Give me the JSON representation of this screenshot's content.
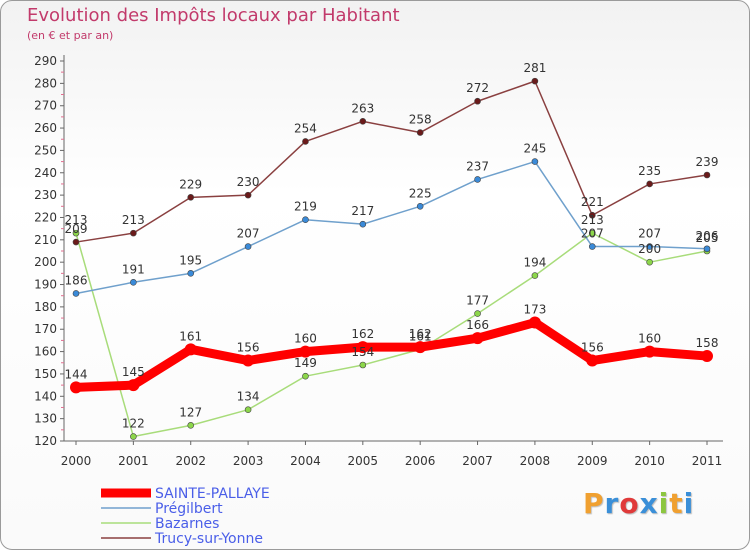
{
  "title": "Evolution des Impôts locaux par Habitant",
  "subtitle": "(en € et par an)",
  "logo": {
    "letters": [
      "P",
      "r",
      "o",
      "x",
      "i",
      "t",
      "i"
    ],
    "colors": [
      "#f0a030",
      "#3a8fd8",
      "#e03a3a",
      "#3a8fd8",
      "#8cc63f",
      "#f0a030",
      "#3a8fd8"
    ]
  },
  "chart_data": {
    "type": "line",
    "title": "Evolution des Impôts locaux par Habitant",
    "subtitle": "(en € et par an)",
    "xlabel": "",
    "ylabel": "",
    "ylim": [
      120,
      290
    ],
    "ystep": 10,
    "grid": false,
    "legend_position": "bottom-left",
    "x": [
      "2000",
      "2001",
      "2002",
      "2003",
      "2004",
      "2005",
      "2006",
      "2007",
      "2008",
      "2009",
      "2010",
      "2011"
    ],
    "series": [
      {
        "name": "SAINTE-PALLAYE",
        "color": "#ff0000",
        "bold": true,
        "marker_color": "#ff0000",
        "values": [
          144,
          145,
          161,
          156,
          160,
          162,
          162,
          166,
          173,
          156,
          160,
          158
        ]
      },
      {
        "name": "Prégilbert",
        "color": "#6fa0cc",
        "bold": false,
        "marker_color": "#3a8ad8",
        "values": [
          186,
          191,
          195,
          207,
          219,
          217,
          225,
          237,
          245,
          207,
          207,
          206
        ]
      },
      {
        "name": "Bazarnes",
        "color": "#a8dc7a",
        "bold": false,
        "marker_color": "#8cd64a",
        "values": [
          213,
          122,
          127,
          134,
          149,
          154,
          161,
          177,
          194,
          213,
          200,
          205
        ]
      },
      {
        "name": "Trucy-sur-Yonne",
        "color": "#8a4040",
        "bold": false,
        "marker_color": "#6a1a1a",
        "values": [
          209,
          213,
          229,
          230,
          254,
          263,
          258,
          272,
          281,
          221,
          235,
          239
        ]
      }
    ]
  }
}
